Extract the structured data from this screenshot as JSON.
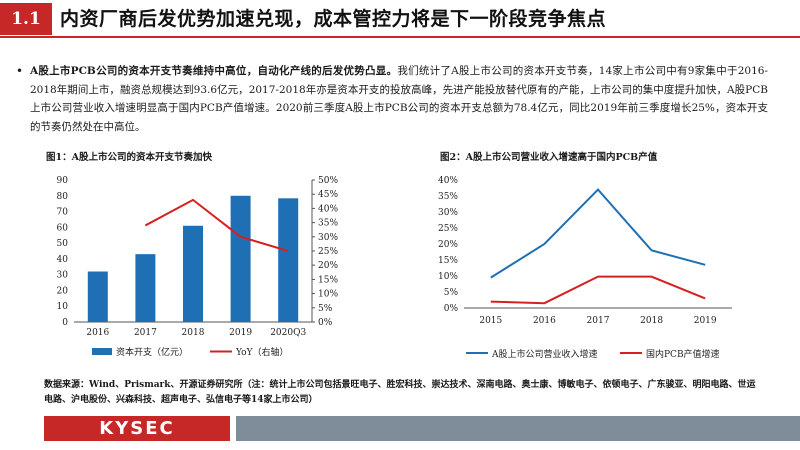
{
  "header": {
    "section": "1.1",
    "title": "内资厂商后发优势加速兑现，成本管控力将是下一阶段竞争焦点"
  },
  "body": {
    "bullet": "•",
    "lead": "A股上市PCB公司的资本开支节奏维持中高位，自动化产线的后发优势凸显。",
    "text": "我们统计了A股上市公司的资本开支节奏，14家上市公司中有9家集中于2016-2018年期间上市，融资总规模达到93.6亿元，2017-2018年亦是资本开支的投放高峰，先进产能投放替代原有的产能，上市公司的集中度提升加快，A股PCB上市公司营业收入增速明显高于国内PCB产值增速。2020前三季度A股上市PCB公司的资本开支总额为78.4亿元，同比2019年前三季度增长25%，资本开支的节奏仍然处在中高位。"
  },
  "chart_data": [
    {
      "type": "bar",
      "title": "图1：A股上市公司的资本开支节奏加快",
      "categories": [
        "2016",
        "2017",
        "2018",
        "2019",
        "2020Q3"
      ],
      "series": [
        {
          "name": "资本开支（亿元）",
          "type": "bar",
          "axis": "left",
          "color": "#1f6fb5",
          "values": [
            32,
            43,
            61,
            80,
            78.4
          ]
        },
        {
          "name": "YoY（右轴）",
          "type": "line",
          "axis": "right",
          "color": "#d62020",
          "values": [
            null,
            0.34,
            0.43,
            0.3,
            0.25
          ]
        }
      ],
      "ylim_left": [
        0,
        90
      ],
      "ylim_right": [
        0,
        0.5
      ],
      "yticks_left": [
        "0",
        "10",
        "20",
        "30",
        "40",
        "50",
        "60",
        "70",
        "80",
        "90"
      ],
      "yticks_right": [
        "0%",
        "5%",
        "10%",
        "15%",
        "20%",
        "25%",
        "30%",
        "35%",
        "40%",
        "45%",
        "50%"
      ],
      "legend_position": "bottom",
      "grid": false
    },
    {
      "type": "line",
      "title": "图2：A股上市公司营业收入增速高于国内PCB产值",
      "categories": [
        "2015",
        "2016",
        "2017",
        "2018",
        "2019"
      ],
      "series": [
        {
          "name": "A股上市公司营业收入增速",
          "color": "#1f6fb5",
          "values": [
            0.095,
            0.2,
            0.37,
            0.18,
            0.135
          ]
        },
        {
          "name": "国内PCB产值增速",
          "color": "#d62020",
          "values": [
            0.02,
            0.015,
            0.098,
            0.098,
            0.03
          ]
        }
      ],
      "ylim": [
        0,
        0.4
      ],
      "yticks": [
        "0%",
        "5%",
        "10%",
        "15%",
        "20%",
        "25%",
        "30%",
        "35%",
        "40%"
      ],
      "legend_position": "bottom",
      "grid": false
    }
  ],
  "source": "数据来源：Wind、Prismark、开源证券研究所（注：统计上市公司包括景旺电子、胜宏科技、崇达技术、深南电路、奥士康、博敏电子、依顿电子、广东骏亚、明阳电路、世运电路、沪电股份、兴森科技、超声电子、弘信电子等14家上市公司）",
  "footer": {
    "logo": "KYSEC",
    "colors": {
      "brand_red": "#c62828",
      "band_gray": "#7f8c99"
    }
  }
}
